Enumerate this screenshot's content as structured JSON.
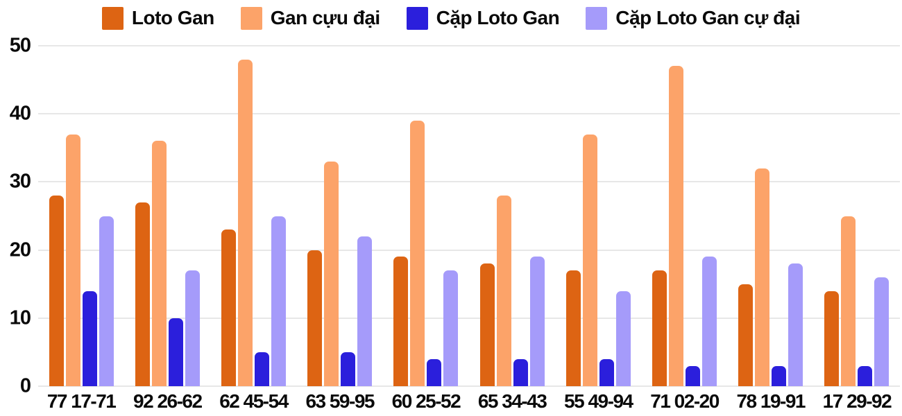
{
  "chart_data": {
    "type": "bar",
    "title": "",
    "categories": [
      "77 17-71",
      "92 26-62",
      "62 45-54",
      "63 59-95",
      "60 25-52",
      "65 34-43",
      "55 49-94",
      "71 02-20",
      "78 19-91",
      "17 29-92"
    ],
    "series": [
      {
        "name": "Loto Gan",
        "color": "#dd6413",
        "values": [
          28,
          27,
          23,
          20,
          19,
          18,
          17,
          17,
          15,
          14
        ]
      },
      {
        "name": "Gan cựu đại",
        "color": "#fca369",
        "values": [
          37,
          36,
          48,
          33,
          39,
          28,
          37,
          47,
          32,
          25
        ]
      },
      {
        "name": "Cặp Loto Gan",
        "color": "#2b1fdc",
        "values": [
          14,
          10,
          5,
          5,
          4,
          4,
          4,
          3,
          3,
          3
        ]
      },
      {
        "name": "Cặp Loto Gan cự đại",
        "color": "#a59bfa",
        "values": [
          25,
          17,
          25,
          22,
          17,
          19,
          14,
          19,
          18,
          16
        ]
      }
    ],
    "ylim": [
      0,
      50
    ],
    "yticks": [
      0,
      10,
      20,
      30,
      40,
      50
    ],
    "grid": true,
    "legend_position": "top",
    "background_color": "#ffffff",
    "gridline_color": "#e7e7e7",
    "text_color": "#0a0a0a"
  }
}
